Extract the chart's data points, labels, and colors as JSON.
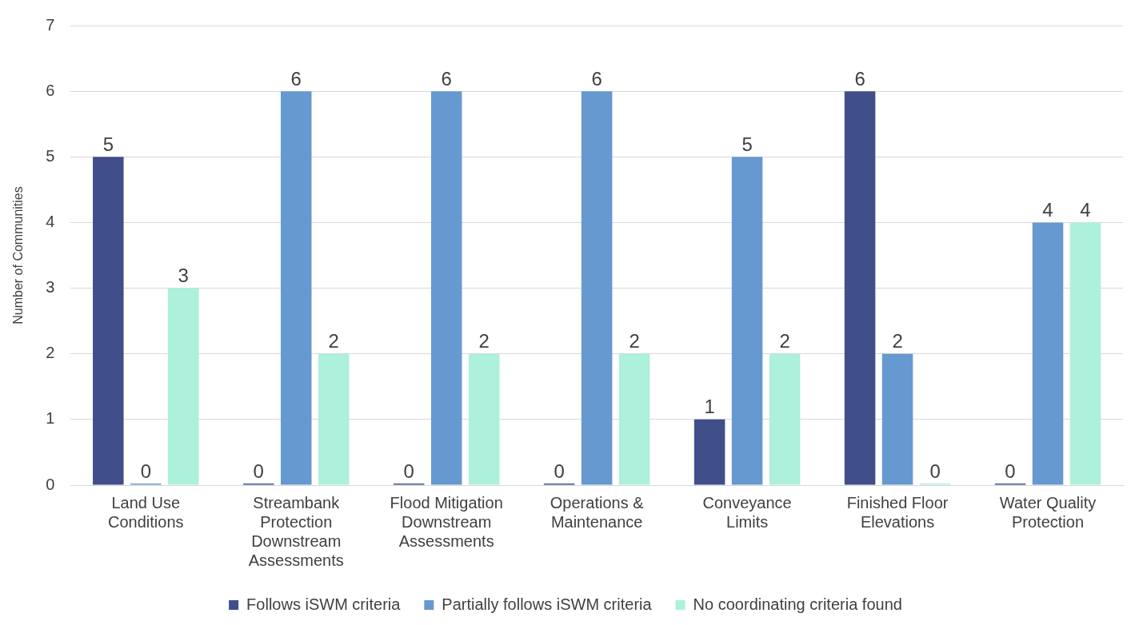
{
  "chart_data": {
    "type": "bar",
    "ylabel": "Number of Communities",
    "categories": [
      "Land Use Conditions",
      "Streambank Protection Downstream Assessments",
      "Flood Mitigation Downstream Assessments",
      "Operations & Maintenance",
      "Conveyance Limits",
      "Finished Floor Elevations",
      "Water Quality Protection"
    ],
    "series": [
      {
        "name": "Follows iSWM criteria",
        "color": "#404e8a",
        "values": [
          5,
          0,
          0,
          0,
          1,
          6,
          0
        ]
      },
      {
        "name": "Partially follows iSWM criteria",
        "color": "#6699cf",
        "values": [
          0,
          6,
          6,
          6,
          5,
          2,
          4
        ]
      },
      {
        "name": "No coordinating criteria found",
        "color": "#adf0dc",
        "values": [
          3,
          2,
          2,
          2,
          2,
          0,
          4
        ]
      }
    ],
    "ylim": [
      0,
      7
    ],
    "yticks": [
      0,
      1,
      2,
      3,
      4,
      5,
      6,
      7
    ],
    "grid": "y",
    "legend": "bottom",
    "data_labels": true
  }
}
